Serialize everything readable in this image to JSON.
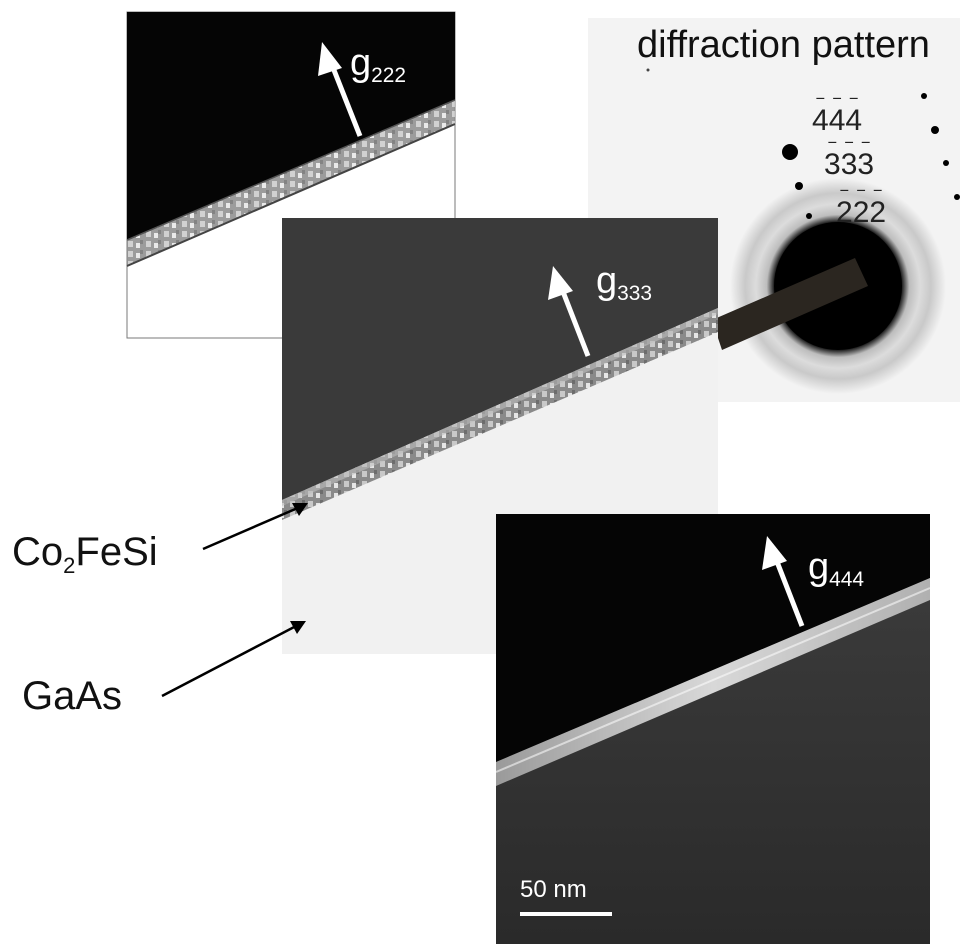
{
  "panels": {
    "diffraction": {
      "title": "diffraction pattern",
      "spots": [
        {
          "digits": [
            "4",
            "4",
            "4"
          ]
        },
        {
          "digits": [
            "3",
            "3",
            "3"
          ]
        },
        {
          "digits": [
            "2",
            "2",
            "2"
          ]
        }
      ]
    },
    "g222": {
      "g": "g",
      "index": "222"
    },
    "g333": {
      "g": "g",
      "index": "333"
    },
    "g444": {
      "g": "g",
      "index": "444"
    }
  },
  "labels": {
    "co2fesi": {
      "a": "Co",
      "sub": "2",
      "b": "FeSi"
    },
    "gaas": "GaAs"
  },
  "scale_bar": "50 nm",
  "colors": {
    "dark_field": "#0a0a0a",
    "mid_field": "#383838",
    "substrate_light": "#f0f0f0",
    "diffraction_bg": "#f3f3f3",
    "arrow": "#ffffff",
    "pointer": "#000000"
  }
}
